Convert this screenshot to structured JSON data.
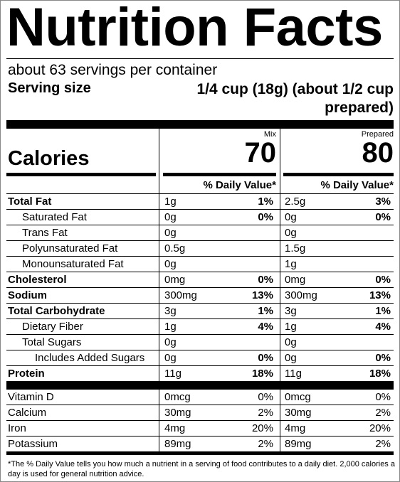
{
  "title": "Nutrition Facts",
  "servings": "about 63 servings per container",
  "serving_size_label": "Serving size",
  "serving_size_value": "1/4 cup (18g) (about 1/2 cup prepared)",
  "calories_label": "Calories",
  "dv_header": "% Daily Value*",
  "columns": [
    {
      "name": "Mix",
      "calories": "70"
    },
    {
      "name": "Prepared",
      "calories": "80"
    }
  ],
  "nutrients": [
    {
      "name": "Total Fat",
      "bold": true,
      "indent": 0,
      "values": [
        {
          "amount": "1g",
          "dv": "1%"
        },
        {
          "amount": "2.5g",
          "dv": "3%"
        }
      ]
    },
    {
      "name": "Saturated Fat",
      "bold": false,
      "indent": 1,
      "values": [
        {
          "amount": "0g",
          "dv": "0%"
        },
        {
          "amount": "0g",
          "dv": "0%"
        }
      ]
    },
    {
      "name": "Trans Fat",
      "bold": false,
      "indent": 1,
      "values": [
        {
          "amount": "0g",
          "dv": null
        },
        {
          "amount": "0g",
          "dv": null
        }
      ]
    },
    {
      "name": "Polyunsaturated Fat",
      "bold": false,
      "indent": 1,
      "values": [
        {
          "amount": "0.5g",
          "dv": null
        },
        {
          "amount": "1.5g",
          "dv": null
        }
      ]
    },
    {
      "name": "Monounsaturated Fat",
      "bold": false,
      "indent": 1,
      "values": [
        {
          "amount": "0g",
          "dv": null
        },
        {
          "amount": "1g",
          "dv": null
        }
      ]
    },
    {
      "name": "Cholesterol",
      "bold": true,
      "indent": 0,
      "values": [
        {
          "amount": "0mg",
          "dv": "0%"
        },
        {
          "amount": "0mg",
          "dv": "0%"
        }
      ]
    },
    {
      "name": "Sodium",
      "bold": true,
      "indent": 0,
      "values": [
        {
          "amount": "300mg",
          "dv": "13%"
        },
        {
          "amount": "300mg",
          "dv": "13%"
        }
      ]
    },
    {
      "name": "Total Carbohydrate",
      "bold": true,
      "indent": 0,
      "values": [
        {
          "amount": "3g",
          "dv": "1%"
        },
        {
          "amount": "3g",
          "dv": "1%"
        }
      ]
    },
    {
      "name": "Dietary Fiber",
      "bold": false,
      "indent": 1,
      "values": [
        {
          "amount": "1g",
          "dv": "4%"
        },
        {
          "amount": "1g",
          "dv": "4%"
        }
      ]
    },
    {
      "name": "Total Sugars",
      "bold": false,
      "indent": 1,
      "values": [
        {
          "amount": "0g",
          "dv": null
        },
        {
          "amount": "0g",
          "dv": null
        }
      ]
    },
    {
      "name": "Includes Added Sugars",
      "bold": false,
      "indent": 2,
      "values": [
        {
          "amount": "0g",
          "dv": "0%"
        },
        {
          "amount": "0g",
          "dv": "0%"
        }
      ]
    },
    {
      "name": "Protein",
      "bold": true,
      "indent": 0,
      "values": [
        {
          "amount": "11g",
          "dv": "18%"
        },
        {
          "amount": "11g",
          "dv": "18%"
        }
      ]
    }
  ],
  "vitamins": [
    {
      "name": "Vitamin D",
      "values": [
        {
          "amount": "0mcg",
          "dv": "0%"
        },
        {
          "amount": "0mcg",
          "dv": "0%"
        }
      ]
    },
    {
      "name": "Calcium",
      "values": [
        {
          "amount": "30mg",
          "dv": "2%"
        },
        {
          "amount": "30mg",
          "dv": "2%"
        }
      ]
    },
    {
      "name": "Iron",
      "values": [
        {
          "amount": "4mg",
          "dv": "20%"
        },
        {
          "amount": "4mg",
          "dv": "20%"
        }
      ]
    },
    {
      "name": "Potassium",
      "values": [
        {
          "amount": "89mg",
          "dv": "2%"
        },
        {
          "amount": "89mg",
          "dv": "2%"
        }
      ]
    }
  ],
  "footnote": "*The % Daily Value tells you how much a nutrient in a serving of food contributes to a daily diet. 2,000 calories a day is used for general nutrition advice."
}
